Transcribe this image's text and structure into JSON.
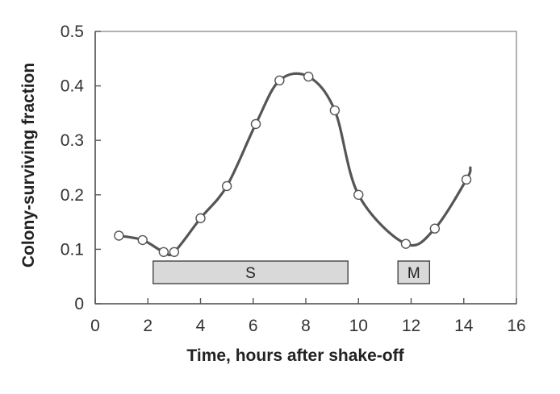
{
  "chart_data": {
    "type": "line",
    "title": "",
    "xlabel": "Time, hours after shake-off",
    "ylabel": "Colony-surviving fraction",
    "xlim": [
      0,
      16
    ],
    "ylim": [
      0,
      0.5
    ],
    "x_ticks": [
      "0",
      "2",
      "4",
      "6",
      "8",
      "10",
      "12",
      "14",
      "16"
    ],
    "y_ticks": [
      "0",
      "0.1",
      "0.2",
      "0.3",
      "0.4",
      "0.5"
    ],
    "grid": false,
    "series": [
      {
        "points": [
          {
            "x": 0.9,
            "y": 0.125
          },
          {
            "x": 1.8,
            "y": 0.117
          },
          {
            "x": 2.6,
            "y": 0.095
          },
          {
            "x": 3.0,
            "y": 0.095
          },
          {
            "x": 4.0,
            "y": 0.157
          },
          {
            "x": 5.0,
            "y": 0.216
          },
          {
            "x": 6.1,
            "y": 0.33
          },
          {
            "x": 7.0,
            "y": 0.41
          },
          {
            "x": 8.1,
            "y": 0.417
          },
          {
            "x": 9.1,
            "y": 0.355
          },
          {
            "x": 10.0,
            "y": 0.2
          },
          {
            "x": 11.8,
            "y": 0.11
          },
          {
            "x": 12.9,
            "y": 0.138
          },
          {
            "x": 14.1,
            "y": 0.228
          }
        ],
        "marker": "open-circle",
        "color": "#555555"
      }
    ],
    "phases": [
      {
        "label": "S",
        "x_start": 2.2,
        "x_end": 9.6
      },
      {
        "label": "M",
        "x_start": 11.5,
        "x_end": 12.7
      }
    ],
    "phase_fill": "#d9d9d9"
  }
}
